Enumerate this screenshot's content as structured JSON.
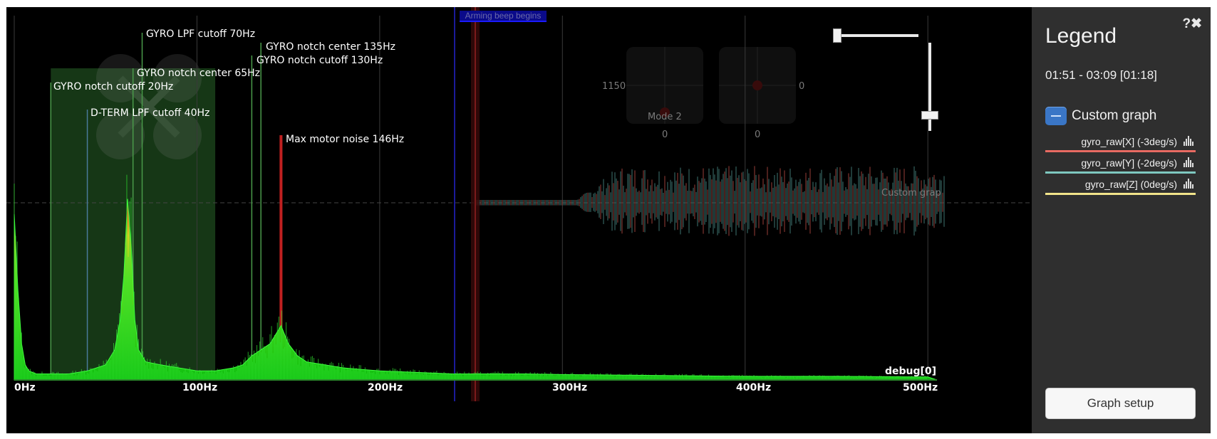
{
  "window": {
    "bottom_strip": ""
  },
  "plot": {
    "marker_labels": [
      {
        "id": "gyro-lpf-cutoff",
        "text": "GYRO LPF cutoff 70Hz",
        "freq": 70,
        "color": "#4a9a4a"
      },
      {
        "id": "gyro-notch-center-135",
        "text": "GYRO notch center 135Hz",
        "freq": 135,
        "color": "#4a9a4a"
      },
      {
        "id": "gyro-notch-cutoff-130",
        "text": "GYRO notch cutoff 130Hz",
        "freq": 130,
        "color": "#4a9a4a"
      },
      {
        "id": "gyro-notch-center-65",
        "text": "GYRO notch center 65Hz",
        "freq": 65,
        "color": "#4a9a4a"
      },
      {
        "id": "gyro-notch-cutoff-20",
        "text": "GYRO notch cutoff 20Hz",
        "freq": 20,
        "color": "#4a9a4a"
      },
      {
        "id": "dterm-lpf-cutoff",
        "text": "D-TERM LPF cutoff 40Hz",
        "freq": 40,
        "color": "#4a7a9a"
      },
      {
        "id": "max-motor-noise",
        "text": "Max motor noise 146Hz",
        "freq": 146,
        "color": "#c02020"
      }
    ],
    "x_ticks": [
      "0Hz",
      "100Hz",
      "200Hz",
      "300Hz",
      "400Hz",
      "500Hz"
    ],
    "x_tick_values": [
      0,
      100,
      200,
      300,
      400,
      500
    ],
    "x_max": 505,
    "series_label": "debug[0]",
    "arming_label": "Arming beep begins",
    "stick_values": {
      "left_throttle": "1150",
      "left_yaw": "0",
      "right_roll": "0",
      "right_pitch": "0"
    },
    "mode_label": "Mode 2",
    "custom_graph_watermark": "Custom grap"
  },
  "legend": {
    "title": "Legend",
    "help_glyph": "?✖",
    "time_range": "01:51 - 03:09 [01:18]",
    "group_label": "Custom graph",
    "series": [
      {
        "label": "gyro_raw[X] (-3deg/s)",
        "color": "#e86a62"
      },
      {
        "label": "gyro_raw[Y] (-2deg/s)",
        "color": "#7ec8c0"
      },
      {
        "label": "gyro_raw[Z] (0deg/s)",
        "color": "#f2e48a"
      }
    ],
    "setup_button": "Graph setup"
  },
  "chart_data": {
    "type": "area",
    "title": "",
    "xlabel": "",
    "ylabel": "",
    "xlim": [
      0,
      505
    ],
    "x": [
      0,
      2,
      4,
      6,
      8,
      12,
      20,
      30,
      40,
      50,
      55,
      58,
      60,
      62,
      64,
      66,
      68,
      72,
      80,
      90,
      100,
      110,
      120,
      125,
      130,
      135,
      140,
      146,
      150,
      155,
      160,
      170,
      180,
      190,
      200,
      220,
      240,
      260,
      280,
      300,
      350,
      400,
      450,
      500,
      505
    ],
    "values": [
      0.55,
      0.3,
      0.12,
      0.05,
      0.03,
      0.02,
      0.02,
      0.02,
      0.03,
      0.05,
      0.1,
      0.2,
      0.35,
      0.6,
      0.45,
      0.2,
      0.1,
      0.06,
      0.05,
      0.04,
      0.03,
      0.03,
      0.04,
      0.05,
      0.08,
      0.1,
      0.12,
      0.18,
      0.12,
      0.08,
      0.06,
      0.05,
      0.04,
      0.035,
      0.03,
      0.025,
      0.02,
      0.02,
      0.02,
      0.018,
      0.015,
      0.012,
      0.012,
      0.01,
      0.0
    ]
  }
}
